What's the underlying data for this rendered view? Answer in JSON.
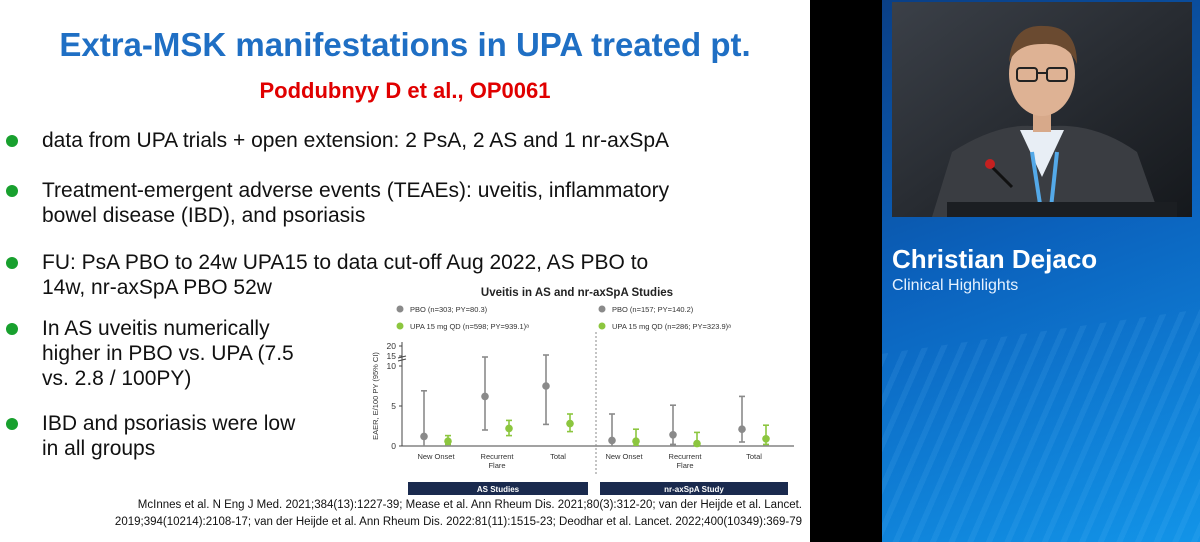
{
  "slide": {
    "title": "Extra-MSK manifestations in UPA treated pt.",
    "subtitle": "Poddubnyy D et al., OP0061",
    "bullets": [
      {
        "lines": [
          "data from UPA trials + open extension: 2 PsA, 2 AS and 1 nr-axSpA"
        ]
      },
      {
        "lines": [
          "Treatment-emergent adverse events (TEAEs): uveitis, inflammatory",
          "bowel disease (IBD), and psoriasis"
        ]
      },
      {
        "lines": [
          "FU: PsA PBO to 24w UPA15 to data cut-off Aug 2022, AS PBO to",
          "14w, nr-axSpA PBO 52w"
        ]
      },
      {
        "lines": [
          "In AS uveitis numerically",
          "higher in PBO vs. UPA (7.5",
          "vs. 2.8 / 100PY)"
        ]
      },
      {
        "lines": [
          "IBD and psoriasis were low",
          "in all groups"
        ]
      }
    ],
    "references": [
      "McInnes et al. N Eng J Med. 2021;384(13):1227-39; Mease et al. Ann Rheum Dis. 2021;80(3):312-20; van der Heijde et al. Lancet.",
      "2019;394(10214):2108-17; van der Heijde et al. Ann Rheum Dis. 2022:81(11):1515-23; Deodhar et al. Lancet. 2022;400(10349):369-79"
    ]
  },
  "speaker": {
    "name": "Christian Dejaco",
    "role": "Clinical Highlights"
  },
  "colors": {
    "title": "#1f6fc4",
    "subtitle": "#e00000",
    "bullet": "#18a02e",
    "pbo": "#8a8a8a",
    "upa": "#8cc63f",
    "study_bar": "#1a2a4e"
  },
  "chart_data": {
    "type": "scatter",
    "title": "Uveitis in AS and nr-axSpA Studies",
    "ylabel": "EAER, E/100 PY (95% CI)",
    "ylim": [
      0,
      20
    ],
    "yticks": [
      0,
      5,
      10,
      15,
      20
    ],
    "y_axis_break": true,
    "groups": [
      {
        "name": "AS Studies",
        "legend": [
          "PBO (n=303; PY=80.3)",
          "UPA 15 mg QD (n=598; PY=939.1)ᵃ"
        ],
        "categories": [
          [
            "New Onset"
          ],
          [
            "Recurrent",
            "Flare"
          ],
          [
            "Total"
          ]
        ],
        "series": [
          {
            "name": "PBO",
            "values": [
              1.2,
              6.2,
              7.5
            ],
            "low": [
              0,
              2.0,
              2.7
            ],
            "high": [
              6.9,
              14.5,
              15.5
            ]
          },
          {
            "name": "UPA 15 mg QD",
            "values": [
              0.6,
              2.2,
              2.8
            ],
            "low": [
              0.2,
              1.3,
              1.8
            ],
            "high": [
              1.3,
              3.2,
              4.0
            ]
          }
        ]
      },
      {
        "name": "nr-axSpA Study",
        "legend": [
          "PBO (n=157; PY=140.2)",
          "UPA 15 mg QD (n=286; PY=323.9)ᵃ"
        ],
        "categories": [
          [
            "New Onset"
          ],
          [
            "Recurrent",
            "Flare"
          ],
          [
            "Total"
          ]
        ],
        "series": [
          {
            "name": "PBO",
            "values": [
              0.7,
              1.4,
              2.1
            ],
            "low": [
              0,
              0.2,
              0.5
            ],
            "high": [
              4.0,
              5.1,
              6.2
            ]
          },
          {
            "name": "UPA 15 mg QD",
            "values": [
              0.6,
              0.3,
              0.9
            ],
            "low": [
              0.1,
              0,
              0.2
            ],
            "high": [
              2.1,
              1.7,
              2.6
            ]
          }
        ]
      }
    ]
  }
}
